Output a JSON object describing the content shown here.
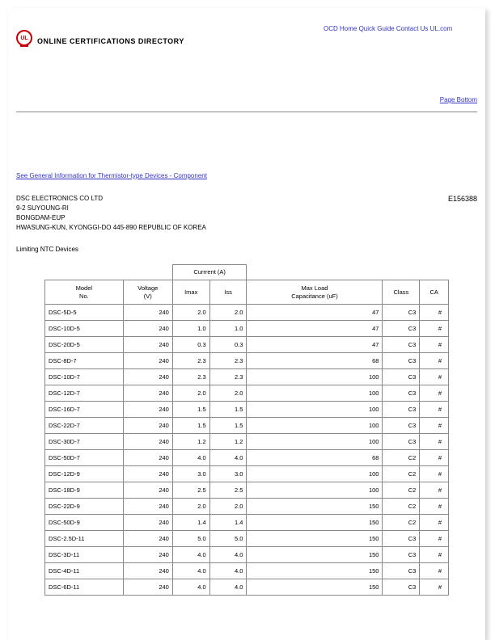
{
  "header": {
    "title": "ONLINE CERTIFICATIONS DIRECTORY",
    "link_home": "OCD Home",
    "link_guide": "Quick Guide",
    "link_contact": "Contact Us",
    "link_ul": "UL.com",
    "page_bottom": "Page Bottom"
  },
  "links": {
    "general_info": "See General Information for Thermistor-type Devices - Component"
  },
  "company": {
    "name": "DSC ELECTRONICS CO LTD",
    "addr1": "9-2 SUYOUNG-RI",
    "addr2": "BONGDAM-EUP",
    "addr3": "HWASUNG-KUN, KYONGGI-DO 445-890 REPUBLIC OF KOREA",
    "code": "E156388"
  },
  "section_title": "Limiting NTC Devices",
  "table": {
    "group_current": "Currrent (A)",
    "cols": {
      "model": "Model\nNo.",
      "voltage": "Voltage\n(V)",
      "imax": "Imax",
      "iss": "Iss",
      "cap": "Max Load\nCapacitance (uF)",
      "class": "Class",
      "ca": "CA"
    },
    "rows": [
      {
        "model": "DSC-5D-5",
        "voltage": "240",
        "imax": "2.0",
        "iss": "2.0",
        "cap": "47",
        "class": "C3",
        "ca": "#"
      },
      {
        "model": "DSC-10D-5",
        "voltage": "240",
        "imax": "1.0",
        "iss": "1.0",
        "cap": "47",
        "class": "C3",
        "ca": "#"
      },
      {
        "model": "DSC-20D-5",
        "voltage": "240",
        "imax": "0.3",
        "iss": "0.3",
        "cap": "47",
        "class": "C3",
        "ca": "#"
      },
      {
        "model": "DSC-8D-7",
        "voltage": "240",
        "imax": "2.3",
        "iss": "2.3",
        "cap": "68",
        "class": "C3",
        "ca": "#"
      },
      {
        "model": "DSC-10D-7",
        "voltage": "240",
        "imax": "2.3",
        "iss": "2.3",
        "cap": "100",
        "class": "C3",
        "ca": "#"
      },
      {
        "model": "DSC-12D-7",
        "voltage": "240",
        "imax": "2.0",
        "iss": "2.0",
        "cap": "100",
        "class": "C3",
        "ca": "#"
      },
      {
        "model": "DSC-16D-7",
        "voltage": "240",
        "imax": "1.5",
        "iss": "1.5",
        "cap": "100",
        "class": "C3",
        "ca": "#"
      },
      {
        "model": "DSC-22D-7",
        "voltage": "240",
        "imax": "1.5",
        "iss": "1.5",
        "cap": "100",
        "class": "C3",
        "ca": "#"
      },
      {
        "model": "DSC-30D-7",
        "voltage": "240",
        "imax": "1.2",
        "iss": "1.2",
        "cap": "100",
        "class": "C3",
        "ca": "#"
      },
      {
        "model": "DSC-50D-7",
        "voltage": "240",
        "imax": "4.0",
        "iss": "4.0",
        "cap": "68",
        "class": "C2",
        "ca": "#"
      },
      {
        "model": "DSC-12D-9",
        "voltage": "240",
        "imax": "3.0",
        "iss": "3.0",
        "cap": "100",
        "class": "C2",
        "ca": "#"
      },
      {
        "model": "DSC-18D-9",
        "voltage": "240",
        "imax": "2.5",
        "iss": "2.5",
        "cap": "100",
        "class": "C2",
        "ca": "#"
      },
      {
        "model": "DSC-22D-9",
        "voltage": "240",
        "imax": "2.0",
        "iss": "2.0",
        "cap": "150",
        "class": "C2",
        "ca": "#"
      },
      {
        "model": "DSC-50D-9",
        "voltage": "240",
        "imax": "1.4",
        "iss": "1.4",
        "cap": "150",
        "class": "C2",
        "ca": "#"
      },
      {
        "model": "DSC-2.5D-11",
        "voltage": "240",
        "imax": "5.0",
        "iss": "5.0",
        "cap": "150",
        "class": "C3",
        "ca": "#"
      },
      {
        "model": "DSC-3D-11",
        "voltage": "240",
        "imax": "4.0",
        "iss": "4.0",
        "cap": "150",
        "class": "C3",
        "ca": "#"
      },
      {
        "model": "DSC-4D-11",
        "voltage": "240",
        "imax": "4.0",
        "iss": "4.0",
        "cap": "150",
        "class": "C3",
        "ca": "#"
      },
      {
        "model": "DSC-6D-11",
        "voltage": "240",
        "imax": "4.0",
        "iss": "4.0",
        "cap": "150",
        "class": "C3",
        "ca": "#"
      }
    ]
  },
  "style": {
    "link_color": "#3333cc",
    "border_color": "#888888",
    "text_color": "#000000",
    "logo_color": "#cc0000"
  }
}
